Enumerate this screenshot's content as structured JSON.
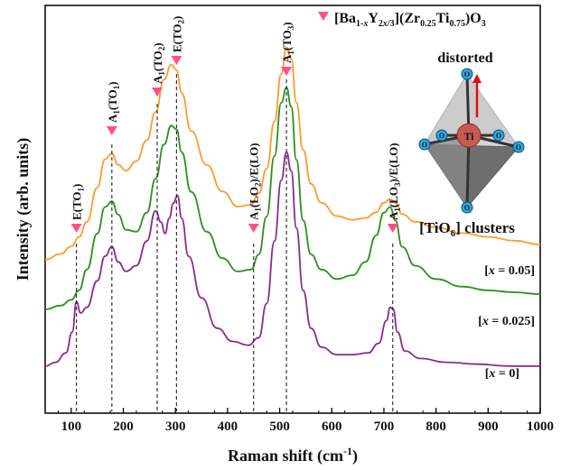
{
  "chart_data": {
    "type": "line",
    "xlabel": "Raman shift (cm",
    "xlabel_sup": "-1",
    "xlabel_tail": ")",
    "ylabel": "Intensity (arb. units)",
    "xlim": [
      50,
      1000
    ],
    "xticks": [
      100,
      200,
      300,
      400,
      500,
      600,
      700,
      800,
      900,
      1000
    ],
    "y_ticks_shown": false,
    "legend": {
      "marker_color": "#ff4f8a",
      "formula": "[Ba1-xY2x/3](Zr0.25Ti0.75)O3"
    },
    "series": [
      {
        "name": "[x = 0.05]",
        "color": "#ff9b2a",
        "x": [
          50,
          80,
          100,
          115,
          130,
          150,
          165,
          178,
          190,
          205,
          225,
          245,
          262,
          278,
          292,
          302,
          312,
          330,
          360,
          390,
          420,
          445,
          460,
          475,
          490,
          503,
          513,
          522,
          532,
          545,
          560,
          580,
          610,
          640,
          665,
          685,
          700,
          712,
          722,
          735,
          760,
          800,
          850,
          900,
          950,
          1000
        ],
        "y": [
          2,
          5,
          9,
          14,
          22,
          40,
          55,
          58,
          52,
          49,
          54,
          65,
          80,
          97,
          105,
          102,
          90,
          70,
          52,
          38,
          30,
          31,
          37,
          50,
          75,
          100,
          114,
          108,
          85,
          60,
          42,
          32,
          25,
          23,
          24,
          27,
          32,
          34,
          32,
          26,
          22,
          19,
          16,
          14,
          12,
          10
        ]
      },
      {
        "name": "[x = 0.025]",
        "color": "#2d8f1f",
        "x": [
          50,
          80,
          100,
          115,
          130,
          150,
          165,
          178,
          190,
          205,
          225,
          245,
          262,
          278,
          292,
          302,
          312,
          330,
          360,
          390,
          420,
          445,
          460,
          475,
          490,
          503,
          513,
          522,
          532,
          545,
          560,
          580,
          610,
          640,
          665,
          685,
          700,
          712,
          722,
          735,
          760,
          800,
          850,
          900,
          950,
          1000
        ],
        "y": [
          1,
          3,
          6,
          11,
          22,
          41,
          55,
          58,
          51,
          43,
          42,
          52,
          70,
          88,
          98,
          96,
          84,
          63,
          42,
          28,
          21,
          22,
          30,
          50,
          82,
          110,
          118,
          108,
          80,
          48,
          30,
          22,
          17,
          19,
          26,
          40,
          52,
          55,
          48,
          34,
          24,
          17,
          13,
          11,
          10,
          9
        ]
      },
      {
        "name": "[x = 0]",
        "color": "#8a2b8f",
        "x": [
          50,
          70,
          90,
          102,
          110,
          118,
          130,
          150,
          165,
          178,
          190,
          205,
          225,
          245,
          262,
          272,
          280,
          288,
          296,
          304,
          312,
          325,
          350,
          380,
          410,
          440,
          460,
          475,
          490,
          503,
          513,
          522,
          532,
          545,
          560,
          580,
          610,
          640,
          670,
          690,
          705,
          712,
          718,
          726,
          740,
          770,
          820,
          880,
          940,
          1000
        ],
        "y": [
          2,
          4,
          9,
          20,
          36,
          30,
          33,
          47,
          60,
          65,
          57,
          52,
          55,
          68,
          84,
          78,
          72,
          80,
          88,
          92,
          80,
          60,
          38,
          22,
          15,
          13,
          17,
          35,
          68,
          100,
          115,
          105,
          75,
          42,
          22,
          12,
          8,
          8,
          9,
          14,
          26,
          33,
          32,
          20,
          10,
          6,
          4,
          3,
          2,
          2
        ]
      }
    ],
    "annotations": [
      {
        "x": 110,
        "label": "E(TO",
        "sub": "1",
        "tail": ")"
      },
      {
        "x": 178,
        "label": "A",
        "sub": "1",
        "tail": "(TO",
        "sub2": "1",
        "tail2": ")"
      },
      {
        "x": 265,
        "label": "A",
        "sub": "1",
        "tail": "(TO",
        "sub2": "2",
        "tail2": ")"
      },
      {
        "x": 302,
        "label": "E(TO",
        "sub": "2",
        "tail": ")"
      },
      {
        "x": 450,
        "label": "A",
        "sub": "1",
        "tail": "(LO",
        "sub2": "2",
        "tail2": ")/E(LO)"
      },
      {
        "x": 513,
        "label": "A",
        "sub": "1",
        "tail": "(TO",
        "sub2": "3",
        "tail2": ")"
      },
      {
        "x": 717,
        "label": "A",
        "sub": "1",
        "tail": "(LO",
        "sub2": "3",
        "tail2": ")/E(LO)"
      }
    ],
    "inset": {
      "title": "distorted",
      "title_color": "#1a2fd6",
      "center_label": "Ti",
      "corner_label": "O",
      "caption": "[TiO",
      "caption_sub": "6",
      "caption_tail": "] clusters",
      "caption_color": "#1a2fd6"
    }
  }
}
